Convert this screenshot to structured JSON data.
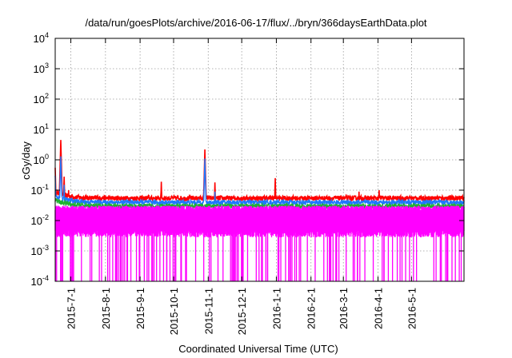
{
  "chart_data": {
    "type": "line",
    "title": "/data/run/goesPlots/archive/2016-06-17/flux/../bryn/366daysEarthData.plot",
    "xlabel": "Coordinated Universal Time (UTC)",
    "ylabel": "cGy/day",
    "yscale": "log",
    "ylim": [
      0.0001,
      10000
    ],
    "yticks": [
      {
        "base": "10",
        "exp": "-4",
        "value": 0.0001
      },
      {
        "base": "10",
        "exp": "-3",
        "value": 0.001
      },
      {
        "base": "10",
        "exp": "-2",
        "value": 0.01
      },
      {
        "base": "10",
        "exp": "-1",
        "value": 0.1
      },
      {
        "base": "10",
        "exp": "0",
        "value": 1
      },
      {
        "base": "10",
        "exp": "1",
        "value": 10
      },
      {
        "base": "10",
        "exp": "2",
        "value": 100
      },
      {
        "base": "10",
        "exp": "3",
        "value": 1000
      },
      {
        "base": "10",
        "exp": "4",
        "value": 10000
      }
    ],
    "xlim": [
      "2015-06-17",
      "2016-06-17"
    ],
    "xticks": [
      "2015-7-1",
      "2015-8-1",
      "2015-9-1",
      "2015-10-1",
      "2015-11-1",
      "2015-12-1",
      "2016-1-1",
      "2016-2-1",
      "2016-3-1",
      "2016-4-1",
      "2016-5-1"
    ],
    "xtick_dates": [
      "2015-07-01",
      "2015-08-01",
      "2015-09-01",
      "2015-10-01",
      "2015-11-01",
      "2015-12-01",
      "2016-01-01",
      "2016-02-01",
      "2016-03-01",
      "2016-04-01",
      "2016-05-01"
    ],
    "grid": true,
    "legend": "none",
    "series": [
      {
        "color": "#ff0000",
        "baseline": 0.055,
        "spikes": [
          {
            "date": "2015-06-17",
            "value": 0.55
          },
          {
            "date": "2015-06-21",
            "value": 0.12
          },
          {
            "date": "2015-06-22",
            "value": 4.5
          },
          {
            "date": "2015-06-25",
            "value": 0.28
          },
          {
            "date": "2015-06-29",
            "value": 0.1
          },
          {
            "date": "2015-09-20",
            "value": 0.19
          },
          {
            "date": "2015-10-29",
            "value": 2.2
          },
          {
            "date": "2015-11-07",
            "value": 0.18
          },
          {
            "date": "2015-12-31",
            "value": 0.25
          },
          {
            "date": "2016-03-15",
            "value": 0.09
          },
          {
            "date": "2016-04-02",
            "value": 0.1
          }
        ]
      },
      {
        "color": "#1f77ff",
        "baseline": 0.04,
        "spikes": [
          {
            "date": "2015-06-17",
            "value": 0.3
          },
          {
            "date": "2015-06-22",
            "value": 1.3
          },
          {
            "date": "2015-06-25",
            "value": 0.15
          },
          {
            "date": "2015-10-29",
            "value": 1.1
          },
          {
            "date": "2015-11-07",
            "value": 0.09
          }
        ]
      },
      {
        "color": "#20b030",
        "baseline": 0.03,
        "spikes": []
      },
      {
        "color": "#ff00ff",
        "baseline": 0.02,
        "min": 0.0001,
        "spikes": []
      }
    ]
  }
}
